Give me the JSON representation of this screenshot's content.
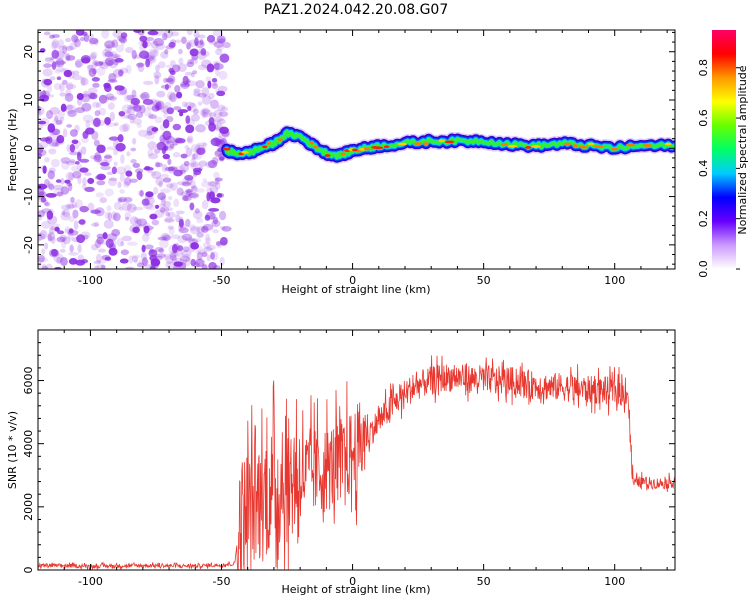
{
  "title": "PAZ1.2024.042.20.08.G07",
  "colors": {
    "snr_line": "#e8372f",
    "noise_dots": "#8a2be2",
    "axis": "#000000"
  },
  "chart_data": [
    {
      "type": "heatmap",
      "xlabel": "Height of straight line (km)",
      "ylabel": "Frequency (Hz)",
      "xlim": [
        -120,
        123
      ],
      "ylim": [
        -25,
        24.5
      ],
      "xticks": [
        -100,
        -50,
        0,
        50,
        100
      ],
      "yticks": [
        -20,
        -10,
        0,
        10,
        20
      ],
      "colorbar": {
        "label": "Normalized spectral amplitude",
        "range": [
          0.0,
          0.95
        ],
        "ticks": [
          "0.0",
          "0.2",
          "0.4",
          "0.6",
          "0.8"
        ],
        "colors": [
          "#ffffff",
          "#cc99ff",
          "#6600ff",
          "#0000ff",
          "#00ccff",
          "#00ff66",
          "#66ff00",
          "#ffff00",
          "#ff9900",
          "#ff0000",
          "#ff0066"
        ]
      },
      "noise_region": {
        "x_range": [
          -120,
          -48
        ],
        "y_range": [
          -25,
          24.5
        ]
      },
      "signal_track": {
        "x": [
          -48,
          -45,
          -40,
          -35,
          -30,
          -25,
          -20,
          -15,
          -10,
          -5,
          0,
          5,
          10,
          20,
          30,
          40,
          50,
          60,
          70,
          80,
          90,
          100,
          110,
          123
        ],
        "y": [
          -0.5,
          -1.0,
          -1.0,
          0.0,
          1.0,
          3.0,
          2.5,
          0.5,
          -1.0,
          -1.5,
          -0.5,
          0.0,
          0.5,
          1.0,
          1.5,
          1.5,
          1.5,
          0.8,
          0.5,
          1.0,
          0.5,
          0.0,
          0.5,
          0.5
        ]
      }
    },
    {
      "type": "line",
      "xlabel": "Height of straight line (km)",
      "ylabel": "SNR (10 * v/v)",
      "xlim": [
        -120,
        123
      ],
      "ylim": [
        0,
        7600
      ],
      "xticks": [
        -100,
        -50,
        0,
        50,
        100
      ],
      "yticks": [
        0,
        2000,
        4000,
        6000
      ],
      "series": [
        {
          "x": [
            -120,
            -100,
            -80,
            -60,
            -50,
            -45,
            -43,
            -40,
            -35,
            -30,
            -25,
            -20,
            -15,
            -10,
            -5,
            0,
            5,
            10,
            15,
            20,
            25,
            30,
            35,
            40,
            45,
            50,
            55,
            60,
            65,
            70,
            75,
            80,
            85,
            90,
            95,
            100,
            105,
            107,
            110,
            115,
            120,
            123
          ],
          "y": [
            150,
            120,
            140,
            130,
            160,
            200,
            1500,
            2000,
            2200,
            2600,
            2800,
            3000,
            3100,
            3200,
            3400,
            3700,
            4200,
            4700,
            5200,
            5600,
            5850,
            6000,
            6100,
            6100,
            6050,
            6050,
            6000,
            6000,
            5900,
            5850,
            5800,
            5800,
            5750,
            5700,
            5700,
            5650,
            5650,
            2750,
            2800,
            2750,
            2750,
            2800
          ]
        }
      ]
    }
  ]
}
